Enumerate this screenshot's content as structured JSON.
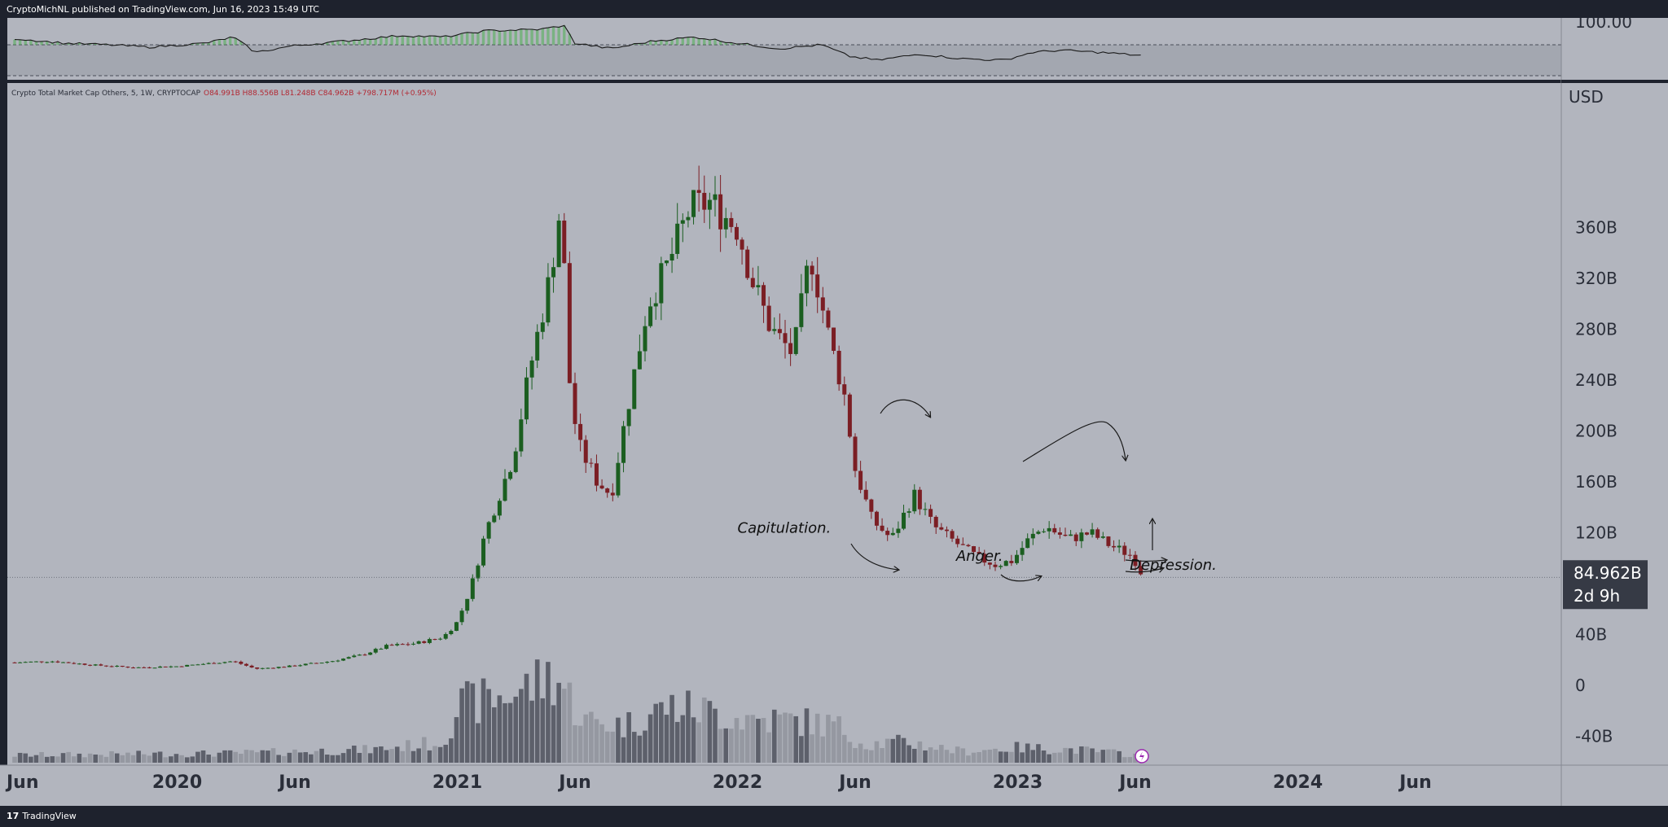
{
  "header": {
    "publisher": "CryptoMichNL published on TradingView.com, Jun 16, 2023 15:49 UTC"
  },
  "footer": {
    "brand": "TradingView",
    "brand_icon": "tradingview-logo-icon"
  },
  "legend": {
    "symbol": "Crypto Total Market Cap Others, 5, 1W, CRYPTOCAP",
    "ohlc": "O84.991B H88.556B L81.248B C84.962B +798.717M (+0.95%)"
  },
  "price_axis": {
    "currency": "USD",
    "ticks": [
      "360B",
      "320B",
      "280B",
      "240B",
      "200B",
      "160B",
      "120B",
      "40B",
      "0",
      "-40B"
    ],
    "tick_values": [
      360,
      320,
      280,
      240,
      200,
      160,
      120,
      40,
      0,
      -40
    ],
    "last_price": "84.962B",
    "countdown": "2d 9h",
    "last_value": 84.962
  },
  "rsi_axis": {
    "top_label": "100.00"
  },
  "time_axis": {
    "labels": [
      "Jun",
      "2020",
      "Jun",
      "2021",
      "Jun",
      "2022",
      "Jun",
      "2023",
      "Jun",
      "2024",
      "Jun"
    ],
    "label_times": [
      2019.42,
      2020.0,
      2020.42,
      2021.0,
      2021.42,
      2022.0,
      2022.42,
      2023.0,
      2023.42,
      2024.0,
      2024.42
    ]
  },
  "annotations": [
    {
      "text": "Capitulation.",
      "x": 2022.0,
      "y": 120
    },
    {
      "text": "Anger.",
      "x": 2022.78,
      "y": 98
    },
    {
      "text": "Depression.",
      "x": 2023.4,
      "y": 91
    }
  ],
  "chart_data": {
    "type": "candlestick",
    "title": "Crypto Total Market Cap Others, 5, 1W, CRYPTOCAP",
    "xlabel": "",
    "ylabel": "USD",
    "ylim": [
      -48,
      380
    ],
    "xlim": [
      2019.42,
      2024.89
    ],
    "interval": "1W",
    "anchors": [
      [
        2019.42,
        18
      ],
      [
        2019.55,
        19
      ],
      [
        2019.7,
        16
      ],
      [
        2019.85,
        14
      ],
      [
        2020.0,
        15
      ],
      [
        2020.1,
        17
      ],
      [
        2020.2,
        19
      ],
      [
        2020.28,
        13
      ],
      [
        2020.4,
        15
      ],
      [
        2020.55,
        19
      ],
      [
        2020.66,
        24
      ],
      [
        2020.75,
        31
      ],
      [
        2020.85,
        33
      ],
      [
        2020.95,
        38
      ],
      [
        2021.0,
        50
      ],
      [
        2021.05,
        78
      ],
      [
        2021.1,
        120
      ],
      [
        2021.15,
        150
      ],
      [
        2021.2,
        180
      ],
      [
        2021.26,
        250
      ],
      [
        2021.33,
        320
      ],
      [
        2021.37,
        380
      ],
      [
        2021.4,
        240
      ],
      [
        2021.43,
        190
      ],
      [
        2021.5,
        160
      ],
      [
        2021.55,
        150
      ],
      [
        2021.6,
        210
      ],
      [
        2021.68,
        300
      ],
      [
        2021.75,
        330
      ],
      [
        2021.83,
        375
      ],
      [
        2021.9,
        380
      ],
      [
        2022.0,
        360
      ],
      [
        2022.05,
        320
      ],
      [
        2022.12,
        280
      ],
      [
        2022.2,
        260
      ],
      [
        2022.26,
        340
      ],
      [
        2022.33,
        270
      ],
      [
        2022.38,
        230
      ],
      [
        2022.42,
        170
      ],
      [
        2022.48,
        130
      ],
      [
        2022.55,
        115
      ],
      [
        2022.63,
        150
      ],
      [
        2022.7,
        125
      ],
      [
        2022.78,
        112
      ],
      [
        2022.86,
        100
      ],
      [
        2022.92,
        95
      ],
      [
        2022.98,
        98
      ],
      [
        2023.04,
        115
      ],
      [
        2023.1,
        125
      ],
      [
        2023.18,
        115
      ],
      [
        2023.26,
        120
      ],
      [
        2023.33,
        110
      ],
      [
        2023.41,
        102
      ],
      [
        2023.45,
        85
      ]
    ],
    "volume_anchors": [
      [
        2019.42,
        8
      ],
      [
        2020.2,
        10
      ],
      [
        2020.7,
        14
      ],
      [
        2020.95,
        22
      ],
      [
        2021.0,
        60
      ],
      [
        2021.15,
        70
      ],
      [
        2021.25,
        80
      ],
      [
        2021.35,
        95
      ],
      [
        2021.45,
        45
      ],
      [
        2021.6,
        40
      ],
      [
        2021.75,
        60
      ],
      [
        2021.9,
        55
      ],
      [
        2022.0,
        48
      ],
      [
        2022.2,
        45
      ],
      [
        2022.35,
        40
      ],
      [
        2022.45,
        20
      ],
      [
        2022.6,
        22
      ],
      [
        2022.8,
        12
      ],
      [
        2023.0,
        16
      ],
      [
        2023.2,
        14
      ],
      [
        2023.45,
        8
      ]
    ],
    "rsi_anchors": [
      [
        2019.42,
        78
      ],
      [
        2019.6,
        72
      ],
      [
        2019.75,
        70
      ],
      [
        2019.9,
        67
      ],
      [
        2020.1,
        72
      ],
      [
        2020.2,
        80
      ],
      [
        2020.28,
        60
      ],
      [
        2020.4,
        68
      ],
      [
        2020.6,
        75
      ],
      [
        2020.8,
        82
      ],
      [
        2020.95,
        80
      ],
      [
        2021.1,
        88
      ],
      [
        2021.3,
        90
      ],
      [
        2021.38,
        95
      ],
      [
        2021.42,
        72
      ],
      [
        2021.55,
        65
      ],
      [
        2021.7,
        75
      ],
      [
        2021.85,
        80
      ],
      [
        2022.0,
        72
      ],
      [
        2022.15,
        65
      ],
      [
        2022.3,
        70
      ],
      [
        2022.4,
        55
      ],
      [
        2022.5,
        50
      ],
      [
        2022.65,
        58
      ],
      [
        2022.8,
        52
      ],
      [
        2022.95,
        50
      ],
      [
        2023.05,
        60
      ],
      [
        2023.15,
        63
      ],
      [
        2023.3,
        60
      ],
      [
        2023.45,
        56
      ]
    ],
    "rsi_levels": [
      100,
      70,
      30
    ]
  }
}
